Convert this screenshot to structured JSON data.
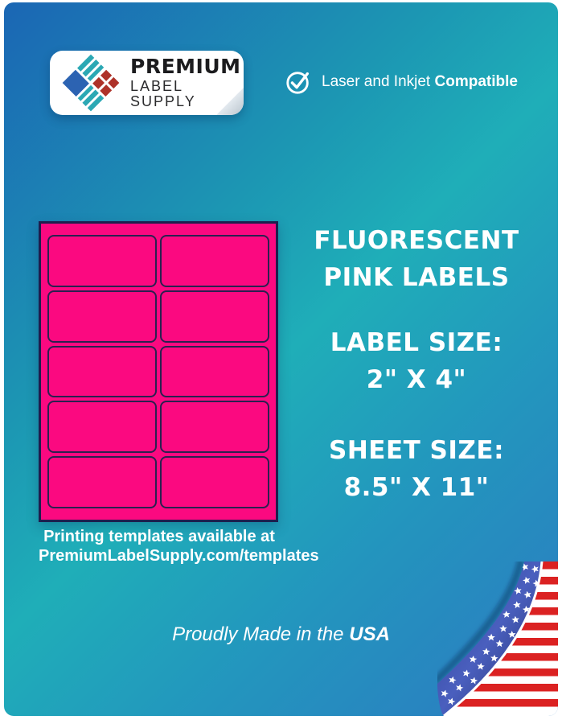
{
  "brand": {
    "line1": "PREMIUM",
    "line2": "LABEL SUPPLY"
  },
  "compatibility": {
    "regular": "Laser and Inkjet",
    "bold": "Compatible"
  },
  "headline": {
    "line1": "FLUORESCENT",
    "line2": "PINK LABELS"
  },
  "label_size": {
    "title": "LABEL SIZE:",
    "value": "2\" X 4\""
  },
  "sheet_size": {
    "title": "SHEET SIZE:",
    "value": "8.5\" X 11\""
  },
  "templates_note": {
    "line1": "Printing templates available at",
    "line2": "PremiumLabelSupply.com/templates"
  },
  "footer": {
    "regular": "Proudly Made in the",
    "bold": "USA"
  },
  "label_sheet": {
    "rows": 5,
    "columns": 2,
    "label_color": "#FB0980",
    "outline_color": "#2B2050"
  },
  "colors": {
    "accent_pink": "#FB0980",
    "bg_blue_top_left": "#1B66B4",
    "bg_teal_mid": "#1FAEB8",
    "bg_blue_bottom_right": "#2C7AC1",
    "flag_red": "#DB2222",
    "flag_blue": "#2E3F95",
    "logo_teal": "#2BA8B4",
    "logo_blue": "#2C63B2",
    "logo_red": "#AE3229"
  },
  "icons": {
    "check": "check-circle-icon",
    "logo": "diamond-grid-logo-icon",
    "flag": "us-flag-page-curl-icon"
  }
}
